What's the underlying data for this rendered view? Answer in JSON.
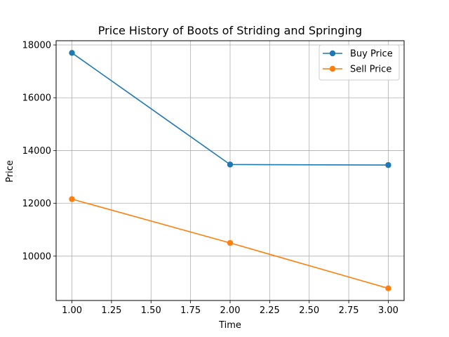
{
  "chart_data": {
    "type": "line",
    "title": "Price History of Boots of Striding and Springing",
    "xlabel": "Time",
    "ylabel": "Price",
    "x": [
      1.0,
      2.0,
      3.0
    ],
    "series": [
      {
        "name": "Buy Price",
        "color": "#1f77b4",
        "values": [
          17700,
          13470,
          13450
        ]
      },
      {
        "name": "Sell Price",
        "color": "#ff7f0e",
        "values": [
          12160,
          10500,
          8780
        ]
      }
    ],
    "xlim": [
      0.9,
      3.1
    ],
    "ylim": [
      8320,
      18160
    ],
    "xticks": [
      1.0,
      1.25,
      1.5,
      1.75,
      2.0,
      2.25,
      2.5,
      2.75,
      3.0
    ],
    "xtick_labels": [
      "1.00",
      "1.25",
      "1.50",
      "1.75",
      "2.00",
      "2.25",
      "2.50",
      "2.75",
      "3.00"
    ],
    "yticks": [
      10000,
      12000,
      14000,
      16000,
      18000
    ],
    "ytick_labels": [
      "10000",
      "12000",
      "14000",
      "16000",
      "18000"
    ],
    "grid": true,
    "legend_position": "top-right"
  }
}
